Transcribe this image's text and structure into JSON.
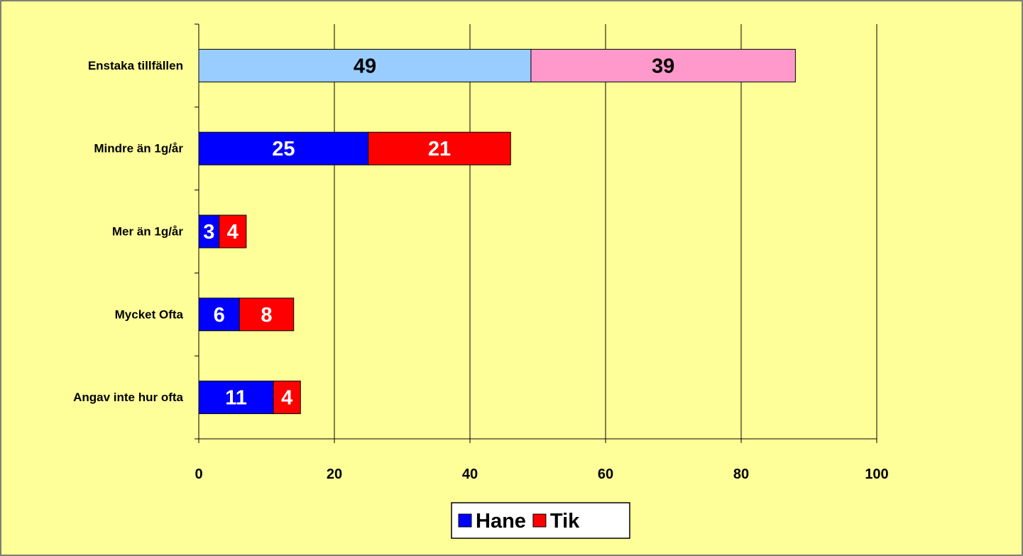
{
  "chart_data": {
    "type": "stacked_bar_horizontal",
    "categories": [
      "Enstaka tillfällen",
      "Mindre än 1g/år",
      "Mer än 1g/år",
      "Mycket Ofta",
      "Angav inte hur ofta"
    ],
    "series": [
      {
        "name": "Hane",
        "color": "#0000ff",
        "colors": [
          "#99ccff",
          "#0000ff",
          "#0000ff",
          "#0000ff",
          "#0000ff"
        ],
        "values": [
          49,
          25,
          3,
          6,
          11
        ]
      },
      {
        "name": "Tik",
        "color": "#ff0000",
        "colors": [
          "#ff99cc",
          "#ff0000",
          "#ff0000",
          "#ff0000",
          "#ff0000"
        ],
        "values": [
          39,
          21,
          4,
          8,
          4
        ]
      }
    ],
    "xlim": [
      0,
      100
    ],
    "xticks": [
      0,
      20,
      40,
      60,
      80,
      100
    ],
    "grid": true,
    "legend": "bottom"
  }
}
